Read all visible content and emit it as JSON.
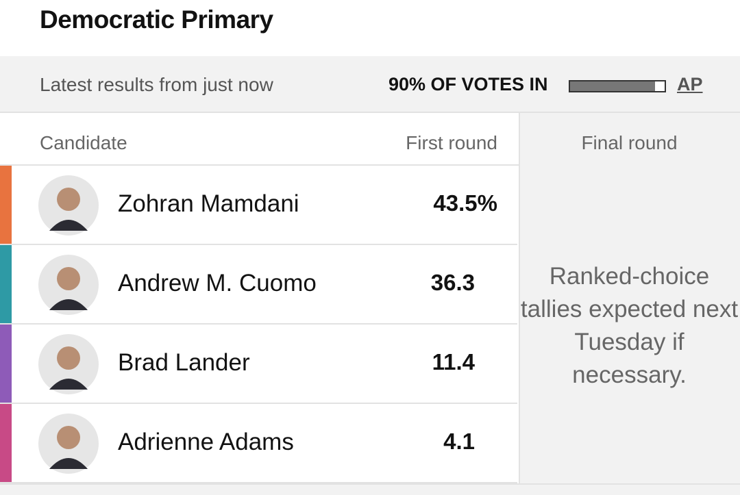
{
  "header": {
    "title": "Democratic Primary"
  },
  "status": {
    "latest": "Latest results from just now",
    "reporting": {
      "label": "90% OF VOTES IN",
      "value": 90
    },
    "source": "AP"
  },
  "table": {
    "columns": [
      "Candidate",
      "First round",
      "Final round"
    ],
    "rows": [
      {
        "name": "Zohran Mamdani",
        "first_round": "43.5%",
        "color": "#e8733f"
      },
      {
        "name": "Andrew M. Cuomo",
        "first_round": "36.3",
        "color": "#2e9aa5"
      },
      {
        "name": "Brad Lander",
        "first_round": "11.4",
        "color": "#8e5bb8"
      },
      {
        "name": "Adrienne Adams",
        "first_round": "4.1",
        "color": "#c84a86"
      }
    ],
    "note": "Ranked-choice tallies expected next Tuesday if necessary."
  }
}
